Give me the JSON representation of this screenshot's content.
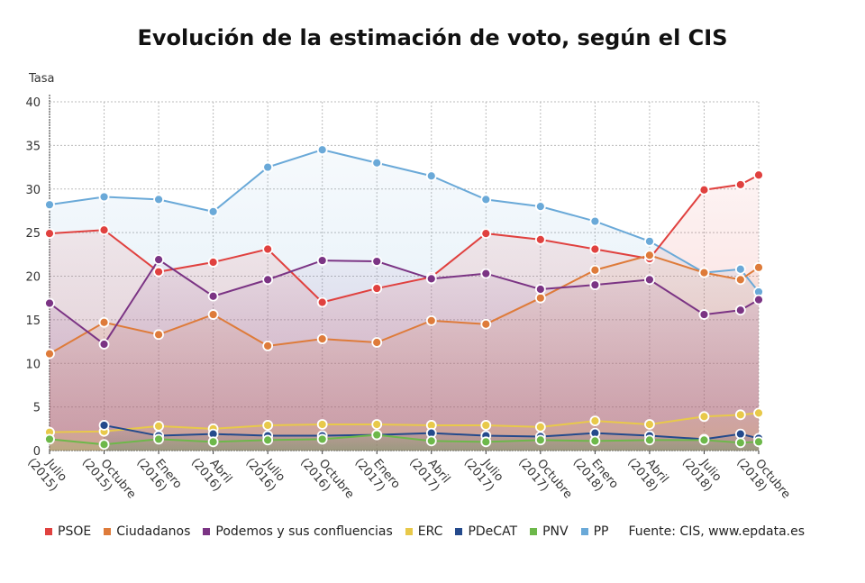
{
  "chart_data": {
    "type": "line",
    "title": "Evolución de la estimación de voto, según el CIS",
    "ylabel": "Tasa",
    "xlabel": "",
    "ylim": [
      0,
      40
    ],
    "yticks": [
      0,
      5,
      10,
      15,
      20,
      25,
      30,
      35,
      40
    ],
    "grid": true,
    "area_fill": true,
    "legend_position": "bottom",
    "x": [
      "2015-07",
      "2015-10",
      "2016-01",
      "2016-04",
      "2016-07",
      "2016-10",
      "2017-01",
      "2017-04",
      "2017-07",
      "2017-10",
      "2018-01",
      "2018-04",
      "2018-07",
      "2018-09",
      "2018-10"
    ],
    "xtick_labels": [
      {
        "x": "2015-07",
        "line1": "Julio",
        "line2": "(2015)"
      },
      {
        "x": "2015-10",
        "line1": "Octubre",
        "line2": "(2015)"
      },
      {
        "x": "2016-01",
        "line1": "Enero",
        "line2": "(2016)"
      },
      {
        "x": "2016-04",
        "line1": "Abril",
        "line2": "(2016)"
      },
      {
        "x": "2016-07",
        "line1": "Julio",
        "line2": "(2016)"
      },
      {
        "x": "2016-10",
        "line1": "Octubre",
        "line2": "(2016)"
      },
      {
        "x": "2017-01",
        "line1": "Enero",
        "line2": "(2017)"
      },
      {
        "x": "2017-04",
        "line1": "Abril",
        "line2": "(2017)"
      },
      {
        "x": "2017-07",
        "line1": "Julio",
        "line2": "(2017)"
      },
      {
        "x": "2017-10",
        "line1": "Octubre",
        "line2": "(2017)"
      },
      {
        "x": "2018-01",
        "line1": "Enero",
        "line2": "(2018)"
      },
      {
        "x": "2018-04",
        "line1": "Abril",
        "line2": "(2018)"
      },
      {
        "x": "2018-07",
        "line1": "Julio",
        "line2": "(2018)"
      },
      {
        "x": "2018-10",
        "line1": "Octubre",
        "line2": "(2018)"
      }
    ],
    "series": [
      {
        "name": "PP",
        "color": "#6aa9d8",
        "values": [
          28.2,
          29.1,
          28.8,
          27.4,
          32.5,
          34.5,
          33.0,
          31.5,
          28.8,
          28.0,
          26.3,
          24.0,
          20.4,
          20.8,
          18.2
        ]
      },
      {
        "name": "PSOE",
        "color": "#e0413f",
        "values": [
          24.9,
          25.3,
          20.5,
          21.6,
          23.1,
          17.0,
          18.6,
          19.9,
          24.9,
          24.2,
          23.1,
          22.0,
          29.9,
          30.5,
          31.6
        ]
      },
      {
        "name": "Ciudadanos",
        "color": "#de7b3a",
        "values": [
          11.1,
          14.7,
          13.3,
          15.6,
          12.0,
          12.8,
          12.4,
          14.9,
          14.5,
          17.5,
          20.7,
          22.4,
          20.4,
          19.6,
          21.0
        ]
      },
      {
        "name": "Podemos y sus confluencias",
        "color": "#7b3484",
        "values": [
          16.9,
          12.2,
          21.9,
          17.7,
          19.6,
          21.8,
          21.7,
          19.7,
          20.3,
          18.5,
          19.0,
          19.6,
          15.6,
          16.1,
          17.3
        ]
      },
      {
        "name": "ERC",
        "color": "#e8c94a",
        "values": [
          2.1,
          2.2,
          2.8,
          2.5,
          2.9,
          3.0,
          3.0,
          2.9,
          2.9,
          2.7,
          3.4,
          3.0,
          3.9,
          4.1,
          4.3
        ]
      },
      {
        "name": "PDeCAT",
        "color": "#244a8c",
        "values": [
          null,
          2.9,
          1.7,
          1.9,
          1.7,
          1.7,
          1.8,
          2.0,
          1.7,
          1.6,
          2.0,
          1.7,
          1.3,
          1.9,
          1.4
        ]
      },
      {
        "name": "PNV",
        "color": "#6db84a",
        "values": [
          1.3,
          0.7,
          1.3,
          1.0,
          1.2,
          1.3,
          1.8,
          1.1,
          1.0,
          1.2,
          1.1,
          1.2,
          1.2,
          0.9,
          1.0
        ]
      }
    ],
    "legend_order": [
      "PSOE",
      "Ciudadanos",
      "Podemos y sus confluencias",
      "ERC",
      "PDeCAT",
      "PNV",
      "PP"
    ],
    "source": "Fuente: CIS, www.epdata.es"
  }
}
